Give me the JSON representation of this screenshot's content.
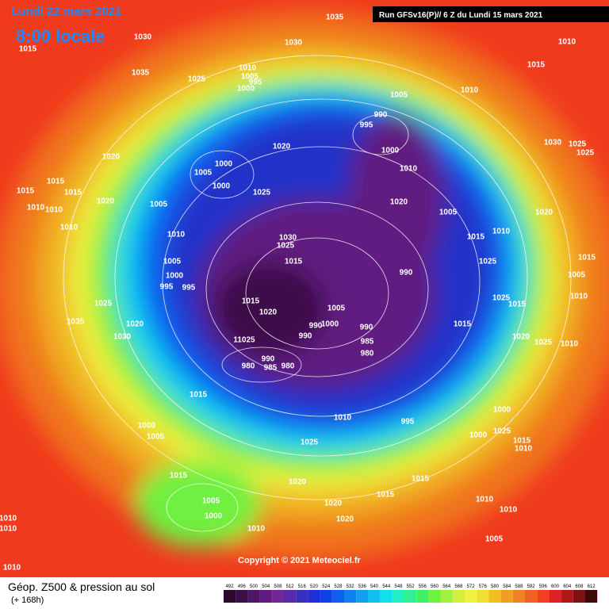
{
  "header": {
    "date": "Lundi 22 mars 2021",
    "time": "8:00 locale",
    "run": "Run GFSv16(P)// 6 Z du Lundi 15 mars 2021"
  },
  "copyright": "Copyright © 2021 Meteociel.fr",
  "footer": {
    "title": "Géop. Z500 & pression au sol",
    "lead": "(+ 168h)"
  },
  "isobar_labels": [
    "1015",
    "1030",
    "1035",
    "1030",
    "1010",
    "1035",
    "1025",
    "1010",
    "1005",
    "995",
    "1000",
    "1015",
    "1005",
    "1010",
    "990",
    "995",
    "1000",
    "1010",
    "1020",
    "1030",
    "1025",
    "1025",
    "1020",
    "1000",
    "1005",
    "1000",
    "1025",
    "1015",
    "1015",
    "1015",
    "1020",
    "1010",
    "1010",
    "1005",
    "1020",
    "1005",
    "1020",
    "1010",
    "1010",
    "1030",
    "1025",
    "1015",
    "1015",
    "1010",
    "1005",
    "1025",
    "1015",
    "1000",
    "990",
    "1005",
    "995",
    "995",
    "1015",
    "1025",
    "1015",
    "1010",
    "1025",
    "1020",
    "1005",
    "1035",
    "1020",
    "990",
    "1000",
    "990",
    "1015",
    "1030",
    "1020",
    "1025",
    "11025",
    "990",
    "985",
    "1010",
    "990",
    "980",
    "980",
    "985",
    "980",
    "1015",
    "1010",
    "1000",
    "995",
    "1000",
    "1025",
    "1005",
    "1000",
    "1015",
    "1010",
    "1025",
    "1015",
    "1015",
    "1020",
    "1015",
    "1010",
    "1005",
    "1020",
    "1000",
    "1010",
    "1020",
    "1010",
    "1010",
    "1010",
    "1005",
    "1010"
  ],
  "scale": {
    "values": [
      492,
      496,
      500,
      504,
      508,
      512,
      516,
      520,
      524,
      528,
      532,
      536,
      540,
      544,
      548,
      552,
      556,
      560,
      564,
      568,
      572,
      576,
      580,
      584,
      588,
      592,
      596,
      600,
      604,
      608,
      612
    ],
    "colors": [
      "#2a0a2e",
      "#3d0f4a",
      "#4f1566",
      "#611b80",
      "#73259a",
      "#5a2aa8",
      "#3a2fc0",
      "#2030d8",
      "#1040e8",
      "#1060f0",
      "#1080f0",
      "#10a0f0",
      "#10c0f0",
      "#10e0e8",
      "#20f0c0",
      "#30f090",
      "#40f060",
      "#70f040",
      "#a0f040",
      "#d0f040",
      "#f0f040",
      "#f0e030",
      "#f0c020",
      "#f0a020",
      "#f08020",
      "#f06020",
      "#f04020",
      "#e02020",
      "#b01818",
      "#801010",
      "#400808"
    ]
  }
}
